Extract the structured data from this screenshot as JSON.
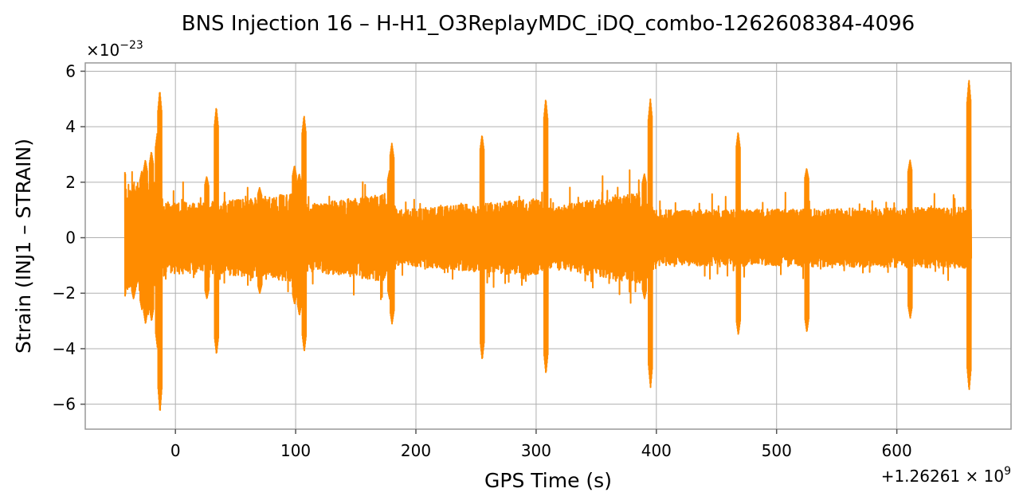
{
  "chart_data": {
    "type": "line",
    "title": "BNS Injection 16 – H-H1_O3ReplayMDC_iDQ_combo-1262608384-4096",
    "xlabel": "GPS Time (s)",
    "ylabel": "Strain (INJ1 – STRAIN)",
    "x_offset_label": "+1.26261 × 10^9",
    "y_scale_label": "×10^−23",
    "xlim": [
      -75,
      695
    ],
    "ylim": [
      -6.9,
      6.3
    ],
    "x_ticks": [
      0,
      100,
      200,
      300,
      400,
      500,
      600
    ],
    "x_tick_labels": [
      "0",
      "100",
      "200",
      "300",
      "400",
      "500",
      "600"
    ],
    "y_ticks": [
      -6,
      -4,
      -2,
      0,
      2,
      4,
      6
    ],
    "y_tick_labels": [
      "−6",
      "−4",
      "−2",
      "0",
      "2",
      "4",
      "6"
    ],
    "grid": true,
    "color": "#ff8c00",
    "series": [
      {
        "x_range": [
          -42,
          662
        ],
        "baseline_amplitude": 1.1,
        "envelope": [
          {
            "x": -42,
            "amp": 1.9
          },
          {
            "x": -20,
            "amp": 2.2
          },
          {
            "x": -8,
            "amp": 1.3
          },
          {
            "x": 30,
            "amp": 1.3
          },
          {
            "x": 100,
            "amp": 1.6
          },
          {
            "x": 110,
            "amp": 1.2
          },
          {
            "x": 175,
            "amp": 1.6
          },
          {
            "x": 185,
            "amp": 1.0
          },
          {
            "x": 300,
            "amp": 1.4
          },
          {
            "x": 312,
            "amp": 1.1
          },
          {
            "x": 390,
            "amp": 1.7
          },
          {
            "x": 400,
            "amp": 1.0
          },
          {
            "x": 662,
            "amp": 1.1
          }
        ],
        "spikes": [
          {
            "x": -43,
            "max": 2.6,
            "min": -2.3
          },
          {
            "x": -35,
            "max": 1.9,
            "min": -2.2
          },
          {
            "x": -28,
            "max": 2.4,
            "min": -2.6
          },
          {
            "x": -25,
            "max": 2.8,
            "min": -3.1
          },
          {
            "x": -20,
            "max": 3.1,
            "min": -3.0
          },
          {
            "x": -15,
            "max": 3.8,
            "min": -4.0
          },
          {
            "x": -13,
            "max": 5.3,
            "min": -6.3
          },
          {
            "x": 26,
            "max": 2.2,
            "min": -2.2
          },
          {
            "x": 34,
            "max": 4.7,
            "min": -4.2
          },
          {
            "x": 70,
            "max": 1.8,
            "min": -2.0
          },
          {
            "x": 99,
            "max": 2.6,
            "min": -2.4
          },
          {
            "x": 103,
            "max": 2.3,
            "min": -2.8
          },
          {
            "x": 107,
            "max": 4.4,
            "min": -4.1
          },
          {
            "x": 178,
            "max": 2.4,
            "min": -2.2
          },
          {
            "x": 180,
            "max": 3.4,
            "min": -3.1
          },
          {
            "x": 255,
            "max": 3.7,
            "min": -4.4
          },
          {
            "x": 308,
            "max": 5.0,
            "min": -4.9
          },
          {
            "x": 390,
            "max": 2.3,
            "min": -2.2
          },
          {
            "x": 395,
            "max": 5.0,
            "min": -5.4
          },
          {
            "x": 468,
            "max": 3.8,
            "min": -3.5
          },
          {
            "x": 525,
            "max": 2.5,
            "min": -3.4
          },
          {
            "x": 611,
            "max": 2.8,
            "min": -2.9
          },
          {
            "x": 660,
            "max": 5.7,
            "min": -5.5
          }
        ]
      }
    ]
  }
}
